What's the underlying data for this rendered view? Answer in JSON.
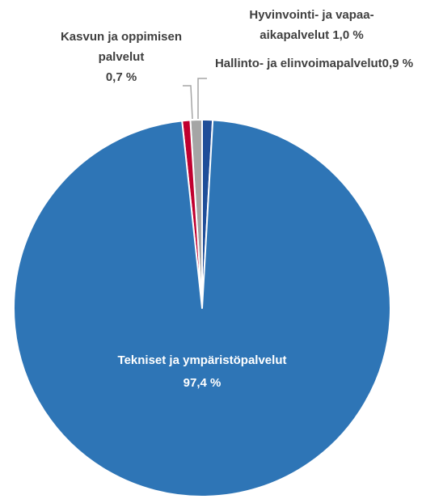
{
  "chart_data": {
    "type": "pie",
    "categories": [
      "Tekniset ja ympäristöpalvelut",
      "Kasvun ja oppimisen palvelut",
      "Hyvinvointi- ja vapaa-aikapalvelut",
      "Hallinto- ja elinvoimapalvelut"
    ],
    "values": [
      97.4,
      0.7,
      1.0,
      0.9
    ],
    "value_labels": [
      "97,4 %",
      "0,7 %",
      "1,0 %",
      "0,9 %"
    ],
    "colors": [
      "#2e75b6",
      "#c0002f",
      "#a5a5a5",
      "#1f4e99"
    ]
  }
}
